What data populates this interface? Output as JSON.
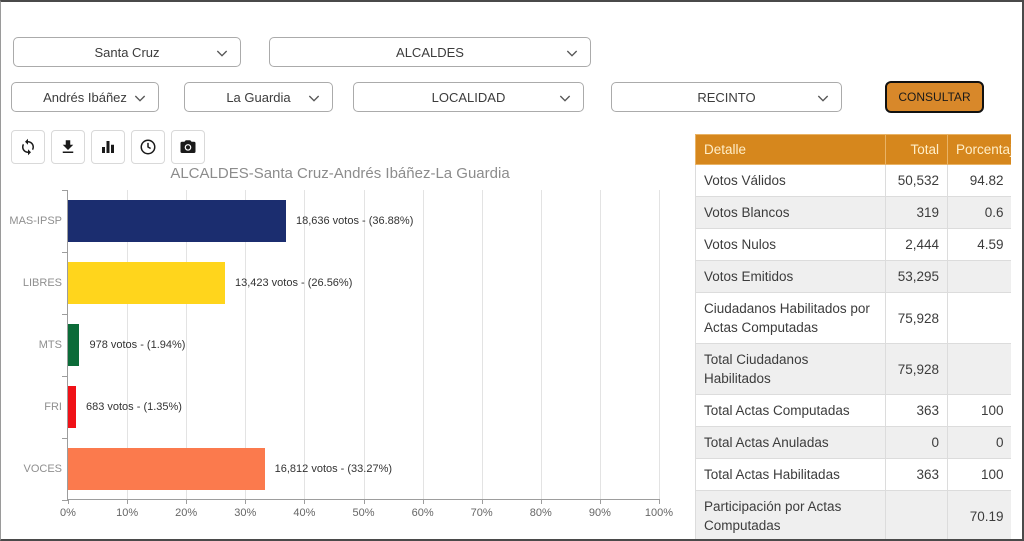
{
  "filters": {
    "department": {
      "value": "Santa Cruz"
    },
    "election": {
      "value": "ALCALDES"
    },
    "province": {
      "value": "Andrés Ibáñez"
    },
    "municipality": {
      "value": "La Guardia"
    },
    "locality": {
      "value": "LOCALIDAD"
    },
    "precinct": {
      "value": "RECINTO"
    },
    "consult_button": "CONSULTAR"
  },
  "toolbar": {
    "icons": [
      "refresh-icon",
      "download-icon",
      "bar-chart-icon",
      "clock-icon",
      "camera-icon"
    ]
  },
  "chart_data": {
    "type": "bar",
    "orientation": "horizontal",
    "title": "ALCALDES-Santa Cruz-Andrés Ibáñez-La Guardia",
    "categories": [
      "MAS-IPSP",
      "LIBRES",
      "MTS",
      "FRI",
      "VOCES"
    ],
    "values": [
      18636,
      13423,
      978,
      683,
      16812
    ],
    "percentages": [
      36.88,
      26.56,
      1.94,
      1.35,
      33.27
    ],
    "value_labels": [
      "18,636 votos - (36.88%)",
      "13,423 votos - (26.56%)",
      "978 votos - (1.94%)",
      "683 votos - (1.35%)",
      "16,812 votos - (33.27%)"
    ],
    "colors": [
      "#1b2d6f",
      "#ffd51c",
      "#0b6b38",
      "#f01117",
      "#fb7a4d"
    ],
    "x_ticks": [
      "0%",
      "10%",
      "20%",
      "30%",
      "40%",
      "50%",
      "60%",
      "70%",
      "80%",
      "90%",
      "100%"
    ],
    "xlim": [
      0,
      100
    ],
    "grid": true,
    "legend": false
  },
  "table": {
    "header_bg": "#d6871d",
    "headers": [
      "Detalle",
      "Total",
      "Porcentaje"
    ],
    "rows": [
      {
        "detalle": "Votos Válidos",
        "total": "50,532",
        "porcentaje": "94.82"
      },
      {
        "detalle": "Votos Blancos",
        "total": "319",
        "porcentaje": "0.6"
      },
      {
        "detalle": "Votos Nulos",
        "total": "2,444",
        "porcentaje": "4.59"
      },
      {
        "detalle": "Votos Emitidos",
        "total": "53,295",
        "porcentaje": ""
      },
      {
        "detalle": "Ciudadanos Habilitados por Actas Computadas",
        "total": "75,928",
        "porcentaje": ""
      },
      {
        "detalle": "Total Ciudadanos Habilitados",
        "total": "75,928",
        "porcentaje": ""
      },
      {
        "detalle": "Total Actas Computadas",
        "total": "363",
        "porcentaje": "100"
      },
      {
        "detalle": "Total Actas Anuladas",
        "total": "0",
        "porcentaje": "0"
      },
      {
        "detalle": "Total Actas Habilitadas",
        "total": "363",
        "porcentaje": "100"
      },
      {
        "detalle": "Participación por Actas Computadas",
        "total": "",
        "porcentaje": "70.19"
      }
    ]
  }
}
